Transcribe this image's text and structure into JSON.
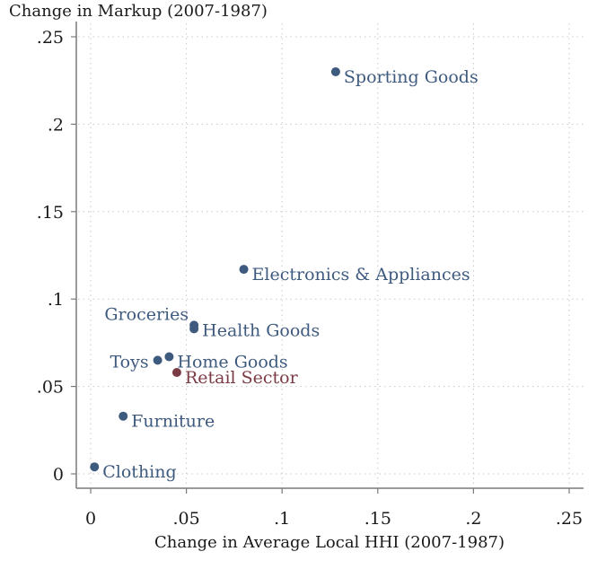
{
  "chart_data": {
    "type": "scatter",
    "ylabel": "Change in Markup (2007-1987)",
    "xlabel": "Change in Average Local HHI (2007-1987)",
    "xlim": [
      -0.004,
      0.257
    ],
    "ylim": [
      -0.008,
      0.258
    ],
    "x_ticks": [
      {
        "value": 0,
        "label": "0"
      },
      {
        "value": 0.05,
        "label": ".05"
      },
      {
        "value": 0.1,
        "label": ".1"
      },
      {
        "value": 0.15,
        "label": ".15"
      },
      {
        "value": 0.2,
        "label": ".2"
      },
      {
        "value": 0.25,
        "label": ".25"
      }
    ],
    "y_ticks": [
      {
        "value": 0,
        "label": "0"
      },
      {
        "value": 0.05,
        "label": ".05"
      },
      {
        "value": 0.1,
        "label": ".1"
      },
      {
        "value": 0.15,
        "label": ".15"
      },
      {
        "value": 0.2,
        "label": ".2"
      },
      {
        "value": 0.25,
        "label": ".25"
      }
    ],
    "grid": true,
    "colors": {
      "sector": "#3e5a7e",
      "aggregate": "#7a3b45"
    },
    "points": [
      {
        "label": "Sporting Goods",
        "x": 0.128,
        "y": 0.23,
        "group": "sector",
        "label_side": "right"
      },
      {
        "label": "Electronics & Appliances",
        "x": 0.08,
        "y": 0.117,
        "group": "sector",
        "label_side": "right"
      },
      {
        "label": "Groceries",
        "x": 0.054,
        "y": 0.083,
        "group": "sector",
        "label_side": "left-above"
      },
      {
        "label": "Health Goods",
        "x": 0.054,
        "y": 0.085,
        "group": "sector",
        "label_side": "right"
      },
      {
        "label": "Home Goods",
        "x": 0.041,
        "y": 0.067,
        "group": "sector",
        "label_side": "right"
      },
      {
        "label": "Toys",
        "x": 0.035,
        "y": 0.065,
        "group": "sector",
        "label_side": "left"
      },
      {
        "label": "Retail Sector",
        "x": 0.045,
        "y": 0.058,
        "group": "aggregate",
        "label_side": "right"
      },
      {
        "label": "Furniture",
        "x": 0.017,
        "y": 0.033,
        "group": "sector",
        "label_side": "right"
      },
      {
        "label": "Clothing",
        "x": 0.002,
        "y": 0.004,
        "group": "sector",
        "label_side": "right"
      }
    ]
  }
}
